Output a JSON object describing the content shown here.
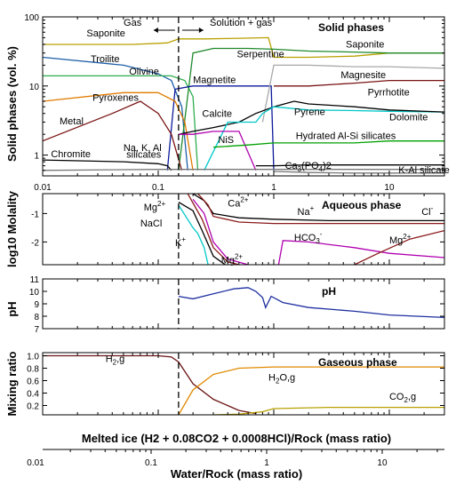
{
  "chart_data": [
    {
      "type": "line",
      "title": "Solid phases",
      "ylabel": "Solid phases (vol. %)",
      "xscale": "log",
      "yscale": "log",
      "xlim": [
        0.01,
        30
      ],
      "ylim": [
        0.5,
        100
      ],
      "yticks": [
        {
          "v": 1,
          "label": "1"
        },
        {
          "v": 10,
          "label": "10"
        },
        {
          "v": 100,
          "label": "100"
        }
      ],
      "xticks": [
        {
          "v": 0.01,
          "label": "0.01"
        },
        {
          "v": 0.1,
          "label": "0.1"
        },
        {
          "v": 1,
          "label": "1"
        },
        {
          "v": 10,
          "label": "10"
        }
      ],
      "vline": 0.15,
      "region_labels": [
        {
          "text": "Gas",
          "x": 0.06,
          "y": 72,
          "arrow": "left"
        },
        {
          "text": "Solution + gas",
          "x": 0.52,
          "y": 72,
          "arrow": "right"
        }
      ],
      "series": [
        {
          "name": "Saponite",
          "color": "#b8a000",
          "x": [
            0.01,
            0.06,
            0.12,
            0.15,
            0.25,
            0.5,
            0.9,
            1.0,
            2,
            5,
            10,
            30
          ],
          "y": [
            40,
            40,
            42,
            48,
            48,
            49,
            50,
            26,
            26,
            27,
            30,
            30
          ]
        },
        {
          "name": "Troilite",
          "color": "#1f5fa8",
          "x": [
            0.01,
            0.05,
            0.1,
            0.13,
            0.16,
            0.18
          ],
          "y": [
            26,
            20,
            15,
            12,
            5,
            0.6
          ]
        },
        {
          "name": "Olivine",
          "color": "#2fae4f",
          "x": [
            0.01,
            0.08,
            0.13,
            0.17,
            0.2,
            0.22
          ],
          "y": [
            14,
            14,
            14,
            12,
            7,
            0.6
          ]
        },
        {
          "name": "Serpentine",
          "color": "#1e8a2c",
          "x": [
            0.15,
            0.2,
            0.3,
            0.6,
            1.0,
            2,
            5,
            10,
            30
          ],
          "y": [
            0.6,
            30,
            35,
            35,
            34,
            32,
            31,
            30,
            30
          ]
        },
        {
          "name": "Magnetite",
          "color": "#0c1b9a",
          "x": [
            0.12,
            0.14,
            0.2,
            0.5,
            0.8,
            0.95,
            1.0
          ],
          "y": [
            0.6,
            9,
            10,
            10,
            10,
            10,
            0.6
          ]
        },
        {
          "name": "Magnesite",
          "color": "#a8a8a8",
          "x": [
            0.8,
            1.0,
            2,
            5,
            10,
            30
          ],
          "y": [
            3,
            20,
            20,
            19,
            19,
            18
          ]
        },
        {
          "name": "Pyrrhotite",
          "color": "#7a1414",
          "x": [
            1.0,
            2,
            5,
            10,
            30
          ],
          "y": [
            10,
            10,
            11,
            12,
            12
          ]
        },
        {
          "name": "Pyroxenes",
          "color": "#e07b00",
          "x": [
            0.01,
            0.05,
            0.1,
            0.14,
            0.17,
            0.2
          ],
          "y": [
            6,
            8,
            8,
            6,
            3,
            0.6
          ]
        },
        {
          "name": "Metal",
          "color": "#7a1414",
          "x": [
            0.01,
            0.04,
            0.07,
            0.1,
            0.13,
            0.16
          ],
          "y": [
            1.6,
            4,
            6,
            4,
            2,
            0.6
          ]
        },
        {
          "name": "Calcite",
          "color": "#000000",
          "x": [
            0.15,
            0.2,
            0.3,
            0.5,
            0.7,
            1.0,
            1.5
          ],
          "y": [
            2,
            2.2,
            2.5,
            3,
            4,
            5,
            6
          ]
        },
        {
          "name": "Pyrene",
          "color": "#00c8c8",
          "x": [
            0.25,
            0.4,
            0.7,
            0.8,
            1.0,
            2,
            5,
            10,
            30
          ],
          "y": [
            0.6,
            3,
            3,
            4,
            5,
            4.5,
            4.4,
            4.3,
            4.2
          ]
        },
        {
          "name": "Dolomite",
          "color": "#000000",
          "x": [
            1.5,
            2,
            5,
            10,
            30
          ],
          "y": [
            6,
            5.5,
            5,
            4.5,
            4.2
          ]
        },
        {
          "name": "NiS",
          "color": "#b000b0",
          "x": [
            0.15,
            0.2,
            0.3,
            0.5,
            0.7
          ],
          "y": [
            2,
            2,
            2.2,
            2.2,
            0.6
          ]
        },
        {
          "name": "Hydrated Al-Si silicates",
          "color": "#00a000",
          "x": [
            0.3,
            0.6,
            1.0,
            2,
            5,
            10,
            30
          ],
          "y": [
            1.3,
            1.4,
            1.5,
            1.5,
            1.5,
            1.6,
            1.6
          ]
        },
        {
          "name": "Na, K, Al silicates",
          "color": "#000000",
          "x": [
            0.01,
            0.05,
            0.1,
            0.12,
            0.13
          ],
          "y": [
            0.85,
            0.8,
            0.75,
            0.7,
            0.6
          ]
        },
        {
          "name": "Chromite",
          "color": "#777777",
          "x": [
            0.01,
            0.1,
            0.3,
            1.0,
            3,
            10,
            30
          ],
          "y": [
            0.6,
            0.62,
            0.62,
            0.62,
            0.62,
            0.62,
            0.62
          ]
        },
        {
          "name": "Ca3(PO4)2",
          "color": "#000000",
          "x": [
            0.7,
            1.0,
            2,
            5,
            10,
            30
          ],
          "y": [
            0.7,
            0.7,
            0.72,
            0.72,
            0.72,
            0.72
          ]
        },
        {
          "name": "K-Al silicate",
          "color": "#777777",
          "x": [
            1.0,
            2,
            5,
            10,
            30
          ],
          "y": [
            0.58,
            0.56,
            0.55,
            0.55,
            0.55
          ]
        }
      ],
      "labels": [
        {
          "text": "Saponite",
          "x": 0.024,
          "y": 52
        },
        {
          "text": "Saponite",
          "x": 4.2,
          "y": 36
        },
        {
          "text": "Troilite",
          "x": 0.026,
          "y": 22
        },
        {
          "text": "Olivine",
          "x": 0.056,
          "y": 14.5
        },
        {
          "text": "Serpentine",
          "x": 0.48,
          "y": 26
        },
        {
          "text": "Magnetite",
          "x": 0.2,
          "y": 11
        },
        {
          "text": "Magnesite",
          "x": 3.8,
          "y": 13
        },
        {
          "text": "Pyrrhotite",
          "x": 6.5,
          "y": 7.3
        },
        {
          "text": "Pyroxenes",
          "x": 0.027,
          "y": 6.1
        },
        {
          "text": "Metal",
          "x": 0.014,
          "y": 2.8
        },
        {
          "text": "Calcite",
          "x": 0.24,
          "y": 3.6
        },
        {
          "text": "Pyrene",
          "x": 1.5,
          "y": 3.8
        },
        {
          "text": "Dolomite",
          "x": 10,
          "y": 3.2
        },
        {
          "text": "NiS",
          "x": 0.33,
          "y": 1.5
        },
        {
          "text": "Hydrated Al-Si silicates",
          "x": 1.55,
          "y": 1.7
        },
        {
          "text": "Na, K, Al",
          "x": 0.05,
          "y": 1.14
        },
        {
          "text": "silicates",
          "x": 0.053,
          "y": 0.92
        },
        {
          "text": "Chromite",
          "x": 0.0118,
          "y": 0.93
        },
        {
          "text": "K-Al silicate",
          "x": 12,
          "y": 0.55
        }
      ]
    },
    {
      "type": "line",
      "title": "Aqueous phase",
      "ylabel": "log10 Molality",
      "xscale": "log",
      "xlim": [
        0.01,
        30
      ],
      "ylim": [
        -2.8,
        -0.3
      ],
      "yticks": [
        {
          "v": -1,
          "label": "-1"
        },
        {
          "v": -2,
          "label": "-2"
        }
      ],
      "vline": 0.15,
      "series": [
        {
          "name": "Cl-",
          "color": "#000000",
          "x": [
            0.2,
            0.25,
            0.3,
            0.5,
            1,
            3,
            10,
            30
          ],
          "y": [
            -0.3,
            -0.55,
            -1.0,
            -1.15,
            -1.2,
            -1.25,
            -1.25,
            -1.25
          ]
        },
        {
          "name": "Na+",
          "color": "#8b1a1a",
          "x": [
            0.22,
            0.27,
            0.3,
            0.5,
            1,
            3,
            10,
            30
          ],
          "y": [
            -0.3,
            -0.7,
            -1.1,
            -1.3,
            -1.35,
            -1.35,
            -1.35,
            -1.35
          ]
        },
        {
          "name": "Ca2+",
          "color": "#b000b0",
          "x": [
            0.2,
            0.25,
            0.3,
            0.4,
            0.6
          ],
          "y": [
            -0.5,
            -1.0,
            -2.0,
            -2.6,
            -2.8
          ]
        },
        {
          "name": "K+",
          "color": "#00c8c8",
          "x": [
            0.15,
            0.2,
            0.22,
            0.25,
            0.27
          ],
          "y": [
            -0.7,
            -1.5,
            -1.7,
            -2.2,
            -2.8
          ]
        },
        {
          "name": "Mg2+",
          "color": "#000000",
          "x": [
            0.15,
            0.2,
            0.24,
            0.3,
            0.38
          ],
          "y": [
            -0.6,
            -0.9,
            -1.6,
            -2.5,
            -2.8
          ]
        },
        {
          "name": "Mg2+",
          "color": "#8b1a1a",
          "x": [
            0.18,
            0.24,
            0.3,
            0.4,
            0.5
          ],
          "y": [
            -0.3,
            -1.2,
            -2.2,
            -2.7,
            -2.8
          ]
        },
        {
          "name": "HCO3-",
          "color": "#b000b0",
          "x": [
            1.1,
            1.2,
            2,
            5,
            10,
            30
          ],
          "y": [
            -2.8,
            -1.95,
            -2.0,
            -2.2,
            -2.4,
            -2.55
          ]
        },
        {
          "name": "Mg2+",
          "color": "#8b1a1a",
          "x": [
            5,
            8,
            15,
            30
          ],
          "y": [
            -2.8,
            -2.4,
            -1.9,
            -1.6
          ]
        }
      ],
      "labels": [
        {
          "text": "Mg",
          "sup": "2+",
          "x": 0.075,
          "y": -0.9
        },
        {
          "text": "NaCl",
          "x": 0.07,
          "y": -1.45
        },
        {
          "text": "K",
          "sup": "+",
          "x": 0.14,
          "y": -2.15
        },
        {
          "text": "Ca",
          "sup": "2+",
          "x": 0.4,
          "y": -0.75
        },
        {
          "text": "Na",
          "sup": "+",
          "x": 1.6,
          "y": -1.05
        },
        {
          "text": "Cl",
          "sup": "-",
          "x": 19,
          "y": -1.05
        },
        {
          "text": "Mg",
          "sup": "2+",
          "x": 0.35,
          "y": -2.75
        },
        {
          "text": "HCO",
          "sub": "3",
          "sup": "-",
          "x": 1.5,
          "y": -1.95
        },
        {
          "text": "Mg",
          "sup": "2+",
          "x": 10,
          "y": -2.05
        }
      ]
    },
    {
      "type": "line",
      "title": "pH",
      "ylabel": "pH",
      "xscale": "log",
      "xlim": [
        0.01,
        30
      ],
      "ylim": [
        7,
        11
      ],
      "yticks": [
        {
          "v": 7,
          "label": "7"
        },
        {
          "v": 8,
          "label": "8"
        },
        {
          "v": 9,
          "label": "9"
        },
        {
          "v": 10,
          "label": "10"
        },
        {
          "v": 11,
          "label": "11"
        }
      ],
      "vline": 0.15,
      "series": [
        {
          "name": "pH",
          "color": "#1e2fa0",
          "x": [
            0.15,
            0.2,
            0.3,
            0.45,
            0.6,
            0.7,
            0.8,
            0.85,
            0.95,
            1.2,
            2,
            5,
            10,
            30
          ],
          "y": [
            9.6,
            9.4,
            9.8,
            10.2,
            10.3,
            10.0,
            9.5,
            8.7,
            9.6,
            9.1,
            8.7,
            8.4,
            8.1,
            7.9
          ]
        }
      ]
    },
    {
      "type": "line",
      "title": "Gaseous phase",
      "ylabel": "Mixing ratio",
      "xscale": "log",
      "xlim": [
        0.01,
        30
      ],
      "ylim": [
        0.05,
        1.05
      ],
      "yticks": [
        {
          "v": 0.2,
          "label": "0.2"
        },
        {
          "v": 0.4,
          "label": "0.4"
        },
        {
          "v": 0.6,
          "label": "0.6"
        },
        {
          "v": 0.8,
          "label": "0.8"
        },
        {
          "v": 1.0,
          "label": "1.0"
        }
      ],
      "vline": 0.15,
      "series": [
        {
          "name": "H2,g",
          "color": "#6b1414",
          "x": [
            0.01,
            0.1,
            0.13,
            0.15,
            0.2,
            0.3,
            0.5,
            0.7
          ],
          "y": [
            1.0,
            1.0,
            0.98,
            0.9,
            0.55,
            0.3,
            0.12,
            0.07
          ]
        },
        {
          "name": "H2O,g",
          "color": "#e08a00",
          "x": [
            0.15,
            0.2,
            0.3,
            0.5,
            1,
            3,
            10,
            30
          ],
          "y": [
            0.05,
            0.45,
            0.7,
            0.8,
            0.82,
            0.82,
            0.82,
            0.82
          ]
        },
        {
          "name": "CO2,g",
          "color": "#b8a000",
          "x": [
            0.3,
            0.5,
            0.8,
            1,
            3,
            10,
            30
          ],
          "y": [
            0.05,
            0.06,
            0.1,
            0.15,
            0.17,
            0.17,
            0.17
          ]
        }
      ],
      "labels": [
        {
          "text": "H",
          "sub": "2",
          "tail": ",g",
          "x": 0.035,
          "y": 0.9
        },
        {
          "text": "H",
          "sub": "2",
          "tail": "O,g",
          "x": 0.9,
          "y": 0.6
        },
        {
          "text": "CO",
          "sub": "2",
          "tail": ",g",
          "x": 10,
          "y": 0.29
        }
      ]
    }
  ],
  "axes": {
    "top_xlabel": "Melted ice (H2 + 0.08CO2 + 0.0008HCl)/Rock (mass ratio)",
    "bottom_xlabel": "Water/Rock (mass ratio)",
    "bottom_xticks": [
      {
        "v": 0.01,
        "label": "0.01"
      },
      {
        "v": 0.1,
        "label": "0.1"
      },
      {
        "v": 1,
        "label": "1"
      },
      {
        "v": 10,
        "label": "10"
      }
    ]
  },
  "annotations": {
    "ca3po4": {
      "text": "Ca",
      "sub1": "3",
      "mid": "(PO",
      "sub2": "4",
      "tail": ")2"
    }
  }
}
